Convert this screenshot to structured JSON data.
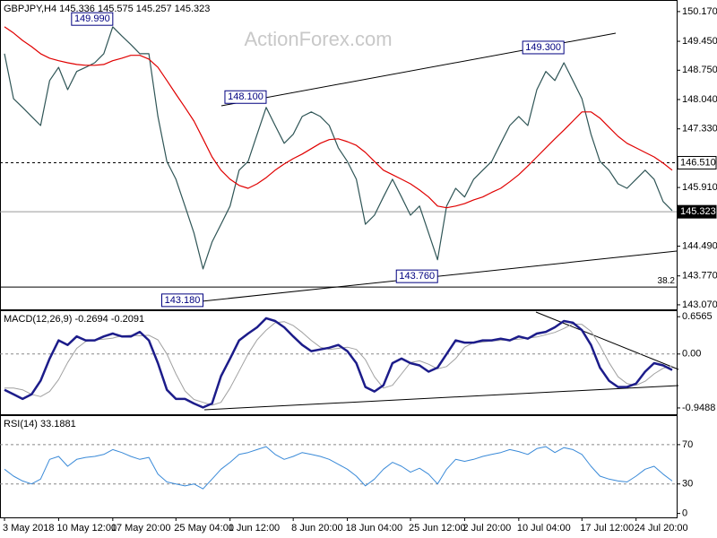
{
  "chart_data": [
    {
      "type": "line",
      "title": "GBPJPY,H4 145.336 145.575 145.257 145.323",
      "watermark": "ActionForex.com",
      "categories": [
        "3 May 2018",
        null,
        null,
        null,
        null,
        null,
        "10 May 12:00",
        null,
        null,
        null,
        null,
        null,
        "17 May 20:00",
        null,
        null,
        null,
        null,
        null,
        null,
        "25 May 04:00",
        null,
        null,
        null,
        null,
        null,
        "1 Jun 12:00",
        null,
        null,
        null,
        null,
        null,
        null,
        "8 Jun 20:00",
        null,
        null,
        null,
        null,
        null,
        "18 Jun 04:00",
        null,
        null,
        null,
        null,
        null,
        null,
        "25 Jun 12:00",
        null,
        null,
        null,
        null,
        null,
        "2 Jul 20:00",
        null,
        null,
        null,
        null,
        null,
        "10 Jul 04:00",
        null,
        null,
        null,
        null,
        null,
        null,
        "17 Jul 12:00",
        null,
        null,
        null,
        null,
        null,
        "24 Jul 20:00",
        null,
        null,
        null,
        null
      ],
      "series": [
        {
          "color": "#2f5556",
          "width": 1.2,
          "values": [
            149.15,
            148.06,
            147.85,
            147.63,
            147.41,
            148.5,
            148.82,
            148.28,
            148.72,
            148.82,
            148.93,
            149.15,
            149.8,
            149.58,
            149.37,
            149.15,
            149.15,
            147.63,
            146.54,
            146.11,
            145.46,
            144.81,
            143.94,
            144.59,
            145.02,
            145.46,
            146.33,
            146.54,
            147.2,
            147.85,
            147.41,
            146.98,
            147.2,
            147.63,
            147.74,
            147.63,
            147.41,
            146.87,
            146.54,
            146.11,
            145.02,
            145.24,
            145.68,
            146.11,
            145.68,
            145.24,
            145.46,
            144.81,
            144.16,
            145.46,
            145.89,
            145.68,
            146.11,
            146.33,
            146.54,
            146.98,
            147.41,
            147.63,
            147.41,
            148.28,
            148.72,
            148.5,
            148.93,
            148.5,
            148.06,
            147.2,
            146.54,
            146.33,
            146.0,
            145.89,
            146.11,
            146.33,
            146.11,
            145.57,
            145.35
          ]
        },
        {
          "color": "#e00000",
          "width": 1.2,
          "values": [
            149.8,
            149.65,
            149.47,
            149.32,
            149.15,
            149.04,
            148.98,
            148.93,
            148.89,
            148.87,
            148.87,
            148.89,
            148.98,
            149.04,
            149.11,
            149.11,
            149.02,
            148.82,
            148.5,
            148.17,
            147.85,
            147.52,
            147.09,
            146.65,
            146.33,
            146.11,
            145.96,
            145.89,
            146.0,
            146.15,
            146.33,
            146.48,
            146.61,
            146.72,
            146.85,
            146.98,
            147.07,
            147.09,
            147.02,
            146.93,
            146.76,
            146.54,
            146.33,
            146.22,
            146.11,
            146.0,
            145.85,
            145.68,
            145.46,
            145.42,
            145.46,
            145.52,
            145.61,
            145.68,
            145.79,
            145.89,
            146.05,
            146.22,
            146.43,
            146.65,
            146.87,
            147.09,
            147.3,
            147.52,
            147.74,
            147.74,
            147.59,
            147.37,
            147.15,
            146.98,
            146.87,
            146.76,
            146.65,
            146.5,
            146.33
          ]
        }
      ],
      "ylim": [
        142.96,
        150.45
      ],
      "yticks": [
        {
          "value": 150.17,
          "label": "150.170"
        },
        {
          "value": 149.45,
          "label": "149.450"
        },
        {
          "value": 148.75,
          "label": "148.750"
        },
        {
          "value": 148.04,
          "label": "148.040"
        },
        {
          "value": 147.33,
          "label": "147.330"
        },
        {
          "value": 145.91,
          "label": "145.910"
        },
        {
          "value": 144.49,
          "label": "144.490"
        },
        {
          "value": 143.77,
          "label": "143.770"
        },
        {
          "value": 143.07,
          "label": "143.070"
        }
      ],
      "hlines": [
        {
          "value": 146.51,
          "label": "146.510",
          "style": "dashed"
        },
        {
          "value": 145.323,
          "label": "145.323",
          "style": "solid"
        }
      ],
      "fib_line": 143.5,
      "fib_label": "38.2",
      "annotations": [
        {
          "index": 12,
          "value": 149.99,
          "label": "149.990"
        },
        {
          "index": 29,
          "value": 148.1,
          "label": "148.100"
        },
        {
          "index": 62,
          "value": 149.3,
          "label": "149.300"
        },
        {
          "index": 48,
          "value": 143.76,
          "label": "143.760"
        },
        {
          "index": 22,
          "value": 143.18,
          "label": "143.180"
        }
      ]
    },
    {
      "type": "line",
      "title": "MACD(12,26,9) -0.2694 -0.2091",
      "series": [
        {
          "color": "#a0a0a0",
          "width": 1,
          "values": [
            -0.6,
            -0.6,
            -0.63,
            -0.71,
            -0.75,
            -0.66,
            -0.45,
            -0.15,
            0.1,
            0.22,
            0.25,
            0.26,
            0.28,
            0.32,
            0.33,
            0.32,
            0.33,
            0.25,
            0.0,
            -0.35,
            -0.65,
            -0.8,
            -0.85,
            -0.9,
            -0.85,
            -0.6,
            -0.3,
            0.0,
            0.25,
            0.42,
            0.55,
            0.57,
            0.5,
            0.38,
            0.24,
            0.12,
            0.08,
            0.1,
            0.12,
            0.08,
            -0.1,
            -0.4,
            -0.6,
            -0.55,
            -0.35,
            -0.15,
            -0.12,
            -0.18,
            -0.26,
            -0.22,
            -0.08,
            0.12,
            0.2,
            0.21,
            0.23,
            0.24,
            0.25,
            0.26,
            0.28,
            0.3,
            0.34,
            0.38,
            0.45,
            0.53,
            0.52,
            0.4,
            0.15,
            -0.15,
            -0.4,
            -0.52,
            -0.55,
            -0.48,
            -0.35,
            -0.25,
            -0.21
          ]
        },
        {
          "color": "#1c1c8a",
          "width": 2.5,
          "values": [
            -0.63,
            -0.71,
            -0.79,
            -0.71,
            -0.47,
            -0.08,
            0.24,
            0.16,
            0.31,
            0.24,
            0.24,
            0.31,
            0.36,
            0.31,
            0.31,
            0.39,
            0.24,
            -0.16,
            -0.63,
            -0.79,
            -0.79,
            -0.87,
            -0.94,
            -0.87,
            -0.39,
            -0.08,
            0.24,
            0.36,
            0.47,
            0.63,
            0.58,
            0.47,
            0.31,
            0.16,
            0.05,
            0.08,
            0.11,
            0.16,
            0.05,
            -0.16,
            -0.58,
            -0.66,
            -0.55,
            -0.16,
            -0.08,
            -0.16,
            -0.2,
            -0.31,
            -0.24,
            0,
            0.24,
            0.2,
            0.2,
            0.24,
            0.24,
            0.27,
            0.24,
            0.31,
            0.27,
            0.36,
            0.39,
            0.47,
            0.58,
            0.55,
            0.42,
            0.16,
            -0.24,
            -0.47,
            -0.58,
            -0.58,
            -0.52,
            -0.31,
            -0.16,
            -0.2,
            -0.28
          ]
        }
      ],
      "ylim": [
        -1.06,
        0.77
      ],
      "yticks": [
        0.6565,
        {
          "value": 0,
          "label": "0.00"
        },
        -0.9488
      ],
      "levels": [
        0
      ]
    },
    {
      "type": "line",
      "title": "RSI(14) 33.1881",
      "series": [
        {
          "color": "#3a8ad8",
          "width": 1,
          "values": [
            45,
            38,
            33,
            30,
            35,
            55,
            58,
            48,
            55,
            57,
            58,
            60,
            65,
            62,
            58,
            55,
            57,
            40,
            32,
            30,
            28,
            30,
            25,
            35,
            45,
            52,
            60,
            62,
            65,
            68,
            60,
            55,
            58,
            62,
            60,
            58,
            55,
            50,
            45,
            38,
            28,
            35,
            45,
            52,
            48,
            42,
            46,
            40,
            30,
            45,
            55,
            53,
            55,
            58,
            60,
            62,
            65,
            63,
            60,
            66,
            68,
            62,
            67,
            65,
            60,
            48,
            38,
            35,
            33,
            32,
            38,
            45,
            48,
            40,
            33
          ]
        }
      ],
      "ylim": [
        -4,
        100
      ],
      "yticks": [
        0,
        30,
        70
      ],
      "levels": [
        30,
        70
      ]
    }
  ]
}
